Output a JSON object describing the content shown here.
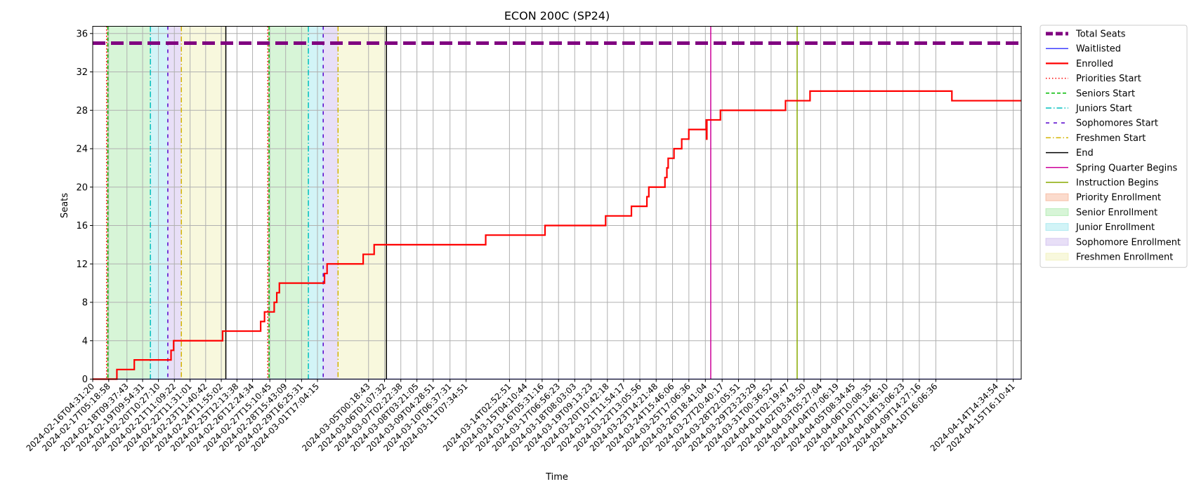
{
  "chart_data": {
    "type": "line",
    "title": "ECON 200C (SP24)",
    "xlabel": "Time",
    "ylabel": "Seats",
    "ylim": [
      0,
      36.75
    ],
    "yticks": [
      0,
      4,
      8,
      12,
      16,
      20,
      24,
      28,
      32,
      36
    ],
    "grid": true,
    "legend_placement": "outside-right",
    "x_range": [
      "2024-02-16T04:31:20",
      "2024-04-16T04:31:20"
    ],
    "xtick_labels": [
      "2024-02-16T04:31:20",
      "2024-02-17T05:18:58",
      "2024-02-18T09:37:43",
      "2024-02-19T09:54:31",
      "2024-02-20T10:27:10",
      "2024-02-21T11:09:22",
      "2024-02-22T11:31:01",
      "2024-02-23T11:40:42",
      "2024-02-24T11:55:02",
      "2024-02-25T12:13:38",
      "2024-02-26T12:24:34",
      "2024-02-27T15:10:45",
      "2024-02-28T15:43:09",
      "2024-02-29T16:25:31",
      "2024-03-01T17:04:15",
      "2024-03-05T00:18:43",
      "2024-03-06T01:07:32",
      "2024-03-07T02:22:38",
      "2024-03-08T03:21:05",
      "2024-03-09T04:28:51",
      "2024-03-10T06:37:31",
      "2024-03-11T07:34:51",
      "2024-03-14T02:52:51",
      "2024-03-15T04:10:44",
      "2024-03-16T05:31:16",
      "2024-03-17T06:56:23",
      "2024-03-18T08:03:03",
      "2024-03-19T09:13:23",
      "2024-03-20T10:42:18",
      "2024-03-21T11:54:17",
      "2024-03-22T13:05:56",
      "2024-03-23T14:21:48",
      "2024-03-24T15:46:06",
      "2024-03-25T17:06:36",
      "2024-03-26T18:41:04",
      "2024-03-27T20:40:17",
      "2024-03-28T22:05:51",
      "2024-03-29T23:23:29",
      "2024-03-31T00:36:52",
      "2024-04-01T02:19:47",
      "2024-04-02T03:43:50",
      "2024-04-03T05:27:04",
      "2024-04-04T07:06:19",
      "2024-04-05T08:34:45",
      "2024-04-06T10:08:35",
      "2024-04-07T11:46:10",
      "2024-04-08T13:06:23",
      "2024-04-09T14:27:16",
      "2024-04-10T16:06:36",
      "2024-04-14T14:34:54",
      "2024-04-15T16:10:41"
    ],
    "series": [
      {
        "name": "Total Seats",
        "color": "#800080",
        "style": "dashed-thick",
        "points": [
          [
            "2024-02-16T04:31:20",
            35
          ],
          [
            "2024-04-16T04:31:20",
            35
          ]
        ]
      },
      {
        "name": "Waitlisted",
        "color": "#0000ff",
        "style": "solid",
        "points": [
          [
            "2024-02-16T04:31:20",
            0
          ],
          [
            "2024-04-16T04:31:20",
            0
          ]
        ]
      },
      {
        "name": "Enrolled",
        "color": "#ff0000",
        "style": "solid-thick",
        "points": [
          [
            "2024-02-16T04:31:20",
            0
          ],
          [
            "2024-02-17T18:00:00",
            0
          ],
          [
            "2024-02-17T18:00:00",
            1
          ],
          [
            "2024-02-18T21:00:00",
            1
          ],
          [
            "2024-02-18T21:00:00",
            2
          ],
          [
            "2024-02-21T06:00:00",
            2
          ],
          [
            "2024-02-21T06:00:00",
            3
          ],
          [
            "2024-02-21T10:00:00",
            3
          ],
          [
            "2024-02-21T10:00:00",
            4
          ],
          [
            "2024-02-24T14:00:00",
            4
          ],
          [
            "2024-02-24T14:00:00",
            5
          ],
          [
            "2024-02-27T01:00:00",
            5
          ],
          [
            "2024-02-27T01:00:00",
            6
          ],
          [
            "2024-02-27T07:00:00",
            6
          ],
          [
            "2024-02-27T07:00:00",
            7
          ],
          [
            "2024-02-27T22:00:00",
            7
          ],
          [
            "2024-02-27T22:00:00",
            8
          ],
          [
            "2024-02-28T02:00:00",
            8
          ],
          [
            "2024-02-28T02:00:00",
            9
          ],
          [
            "2024-02-28T06:00:00",
            9
          ],
          [
            "2024-02-28T06:00:00",
            10
          ],
          [
            "2024-03-02T04:00:00",
            10
          ],
          [
            "2024-03-02T04:00:00",
            11
          ],
          [
            "2024-03-02T08:00:00",
            11
          ],
          [
            "2024-03-02T08:00:00",
            12
          ],
          [
            "2024-03-04T16:00:00",
            12
          ],
          [
            "2024-03-04T16:00:00",
            13
          ],
          [
            "2024-03-05T09:00:00",
            13
          ],
          [
            "2024-03-05T09:00:00",
            14
          ],
          [
            "2024-03-12T14:00:00",
            14
          ],
          [
            "2024-03-12T14:00:00",
            15
          ],
          [
            "2024-03-16T10:00:00",
            15
          ],
          [
            "2024-03-16T10:00:00",
            16
          ],
          [
            "2024-03-20T08:00:00",
            16
          ],
          [
            "2024-03-20T08:00:00",
            17
          ],
          [
            "2024-03-22T00:00:00",
            17
          ],
          [
            "2024-03-22T00:00:00",
            18
          ],
          [
            "2024-03-23T00:00:00",
            18
          ],
          [
            "2024-03-23T00:00:00",
            19
          ],
          [
            "2024-03-23T03:00:00",
            19
          ],
          [
            "2024-03-23T03:00:00",
            20
          ],
          [
            "2024-03-24T04:00:00",
            20
          ],
          [
            "2024-03-24T04:00:00",
            21
          ],
          [
            "2024-03-24T07:00:00",
            21
          ],
          [
            "2024-03-24T07:00:00",
            22
          ],
          [
            "2024-03-24T09:00:00",
            22
          ],
          [
            "2024-03-24T09:00:00",
            23
          ],
          [
            "2024-03-24T18:00:00",
            23
          ],
          [
            "2024-03-24T18:00:00",
            24
          ],
          [
            "2024-03-25T06:00:00",
            24
          ],
          [
            "2024-03-25T06:00:00",
            25
          ],
          [
            "2024-03-25T17:00:00",
            25
          ],
          [
            "2024-03-25T17:00:00",
            26
          ],
          [
            "2024-03-26T20:00:00",
            26
          ],
          [
            "2024-03-26T20:00:00",
            27
          ],
          [
            "2024-03-26T20:30:00",
            27
          ],
          [
            "2024-03-26T20:30:00",
            25
          ],
          [
            "2024-03-26T21:00:00",
            25
          ],
          [
            "2024-03-26T21:00:00",
            27
          ],
          [
            "2024-03-27T18:00:00",
            27
          ],
          [
            "2024-03-27T18:00:00",
            28
          ],
          [
            "2024-03-31T23:00:00",
            28
          ],
          [
            "2024-03-31T23:00:00",
            29
          ],
          [
            "2024-04-02T13:00:00",
            29
          ],
          [
            "2024-04-02T13:00:00",
            30
          ],
          [
            "2024-04-11T17:00:00",
            30
          ],
          [
            "2024-04-11T17:00:00",
            29
          ],
          [
            "2024-04-16T04:31:20",
            29
          ]
        ]
      }
    ],
    "vlines": [
      {
        "name": "Priorities Start",
        "color": "#ff0000",
        "dash": "1.5,3",
        "x": [
          "2024-02-17T02:00:00",
          "2024-02-27T12:00:00"
        ]
      },
      {
        "name": "Seniors Start",
        "color": "#00bb00",
        "dash": "5,3",
        "x": [
          "2024-02-17T04:00:00",
          "2024-02-27T14:00:00"
        ]
      },
      {
        "name": "Juniors Start",
        "color": "#00bfbf",
        "dash": "8,3,1.5,3",
        "x": [
          "2024-02-19T22:00:00",
          "2024-03-01T03:00:00"
        ]
      },
      {
        "name": "Sophomores Start",
        "color": "#5500cc",
        "dash": "5,6",
        "x": [
          "2024-02-21T01:00:00",
          "2024-03-02T02:00:00"
        ]
      },
      {
        "name": "Freshmen Start",
        "color": "#d4b400",
        "dash": "7,3,1.5,3",
        "x": [
          "2024-02-21T22:00:00",
          "2024-03-03T01:00:00"
        ]
      },
      {
        "name": "End",
        "color": "#000000",
        "dash": "",
        "x": [
          "2024-02-24T19:00:00",
          "2024-03-06T04:00:00"
        ]
      },
      {
        "name": "Spring Quarter Begins",
        "color": "#cc0099",
        "dash": "",
        "x": [
          "2024-03-27T03:00:00"
        ]
      },
      {
        "name": "Instruction Begins",
        "color": "#88aa00",
        "dash": "",
        "x": [
          "2024-04-01T17:00:00"
        ]
      }
    ],
    "spans": [
      {
        "name": "Priority Enrollment",
        "color": "#f4a582",
        "ranges": [
          [
            "2024-02-17T02:00:00",
            "2024-02-17T04:00:00"
          ],
          [
            "2024-02-27T12:00:00",
            "2024-02-27T14:00:00"
          ]
        ]
      },
      {
        "name": "Senior Enrollment",
        "color": "#9be59b",
        "ranges": [
          [
            "2024-02-17T04:00:00",
            "2024-02-19T22:00:00"
          ],
          [
            "2024-02-27T14:00:00",
            "2024-03-01T03:00:00"
          ]
        ]
      },
      {
        "name": "Junior Enrollment",
        "color": "#8ee3ea",
        "ranges": [
          [
            "2024-02-19T22:00:00",
            "2024-02-21T01:00:00"
          ],
          [
            "2024-03-01T03:00:00",
            "2024-03-02T02:00:00"
          ]
        ]
      },
      {
        "name": "Sophomore Enrollment",
        "color": "#c5b0ea",
        "ranges": [
          [
            "2024-02-21T01:00:00",
            "2024-02-21T22:00:00"
          ],
          [
            "2024-03-02T02:00:00",
            "2024-03-03T01:00:00"
          ]
        ]
      },
      {
        "name": "Freshmen Enrollment",
        "color": "#eeeeaa",
        "ranges": [
          [
            "2024-02-21T22:00:00",
            "2024-02-24T19:00:00"
          ],
          [
            "2024-03-03T01:00:00",
            "2024-03-06T04:00:00"
          ]
        ]
      }
    ]
  }
}
